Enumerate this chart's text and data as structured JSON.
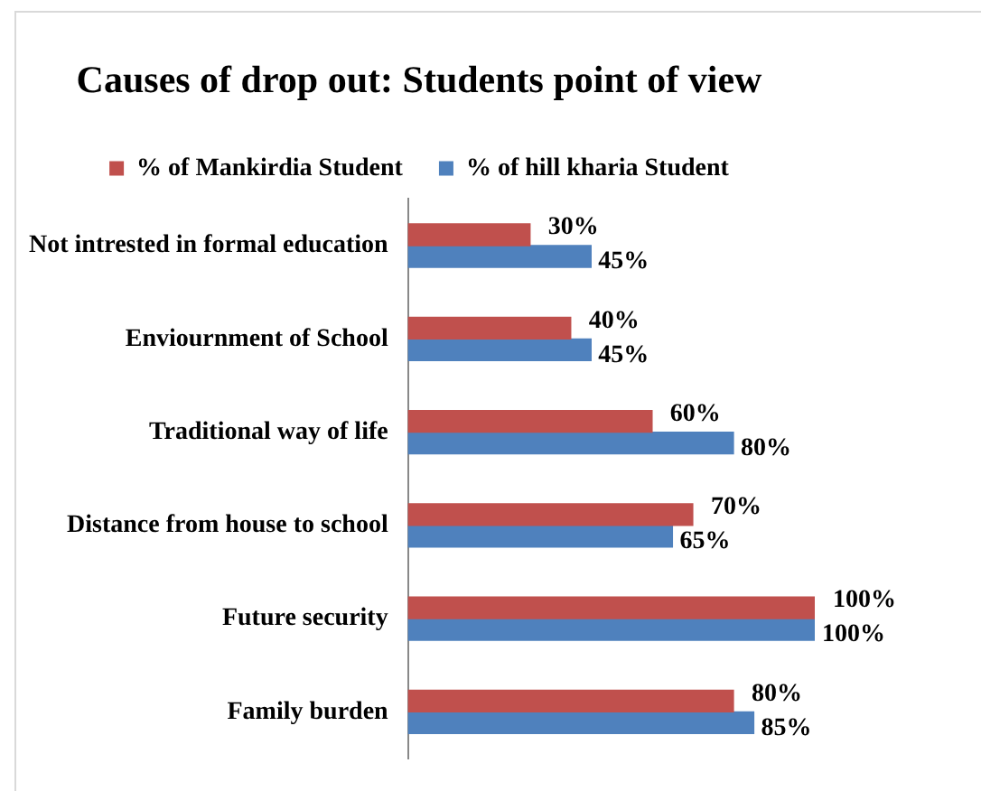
{
  "chart_data": {
    "type": "bar",
    "orientation": "horizontal",
    "title": "Causes of drop out: Students point of view",
    "categories": [
      "Not intrested in formal education",
      "Enviournment of School",
      "Traditional way of life",
      "Distance from house to school",
      "Future security",
      "Family burden"
    ],
    "series": [
      {
        "name": "% of Mankirdia Student",
        "color": "#c0504d",
        "values": [
          30,
          40,
          60,
          70,
          100,
          80
        ],
        "value_labels": [
          "30%",
          "40%",
          "60%",
          "70%",
          "100%",
          "80%"
        ]
      },
      {
        "name": "% of hill kharia Student",
        "color": "#4f81bd",
        "values": [
          45,
          45,
          80,
          65,
          100,
          85
        ],
        "value_labels": [
          "45%",
          "45%",
          "80%",
          "65%",
          "100%",
          "85%"
        ]
      }
    ],
    "legend": "top"
  }
}
